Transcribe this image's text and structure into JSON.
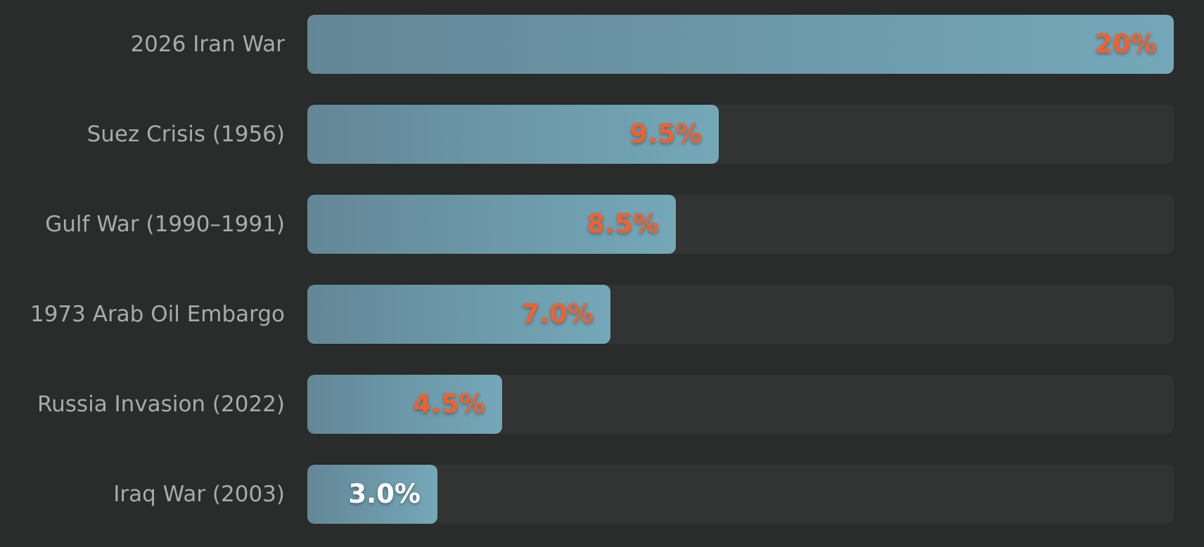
{
  "chart_data": {
    "type": "bar",
    "orientation": "horizontal",
    "categories": [
      "2026 Iran War",
      "Suez Crisis (1956)",
      "Gulf War (1990–1991)",
      "1973 Arab Oil Embargo",
      "Russia Invasion (2022)",
      "Iraq War (2003)"
    ],
    "values": [
      20,
      9.5,
      8.5,
      7.0,
      4.5,
      3.0
    ],
    "value_labels": [
      "20%",
      "9.5%",
      "8.5%",
      "7.0%",
      "4.5%",
      "3.0%"
    ],
    "xlim": [
      0,
      20
    ],
    "grid": false,
    "legend": "none",
    "title": "",
    "xlabel": "",
    "ylabel": ""
  },
  "colors": {
    "background": "#2a2b2b",
    "track": "#323333",
    "bar_start": "#638797",
    "bar_end": "#74a8b8",
    "label_text": "#a8abad",
    "value_highlight": "#f0612f",
    "value_plain": "#ffffff"
  },
  "value_label_colors": [
    "#f0612f",
    "#f0612f",
    "#f0612f",
    "#f0612f",
    "#f0612f",
    "#ffffff"
  ]
}
